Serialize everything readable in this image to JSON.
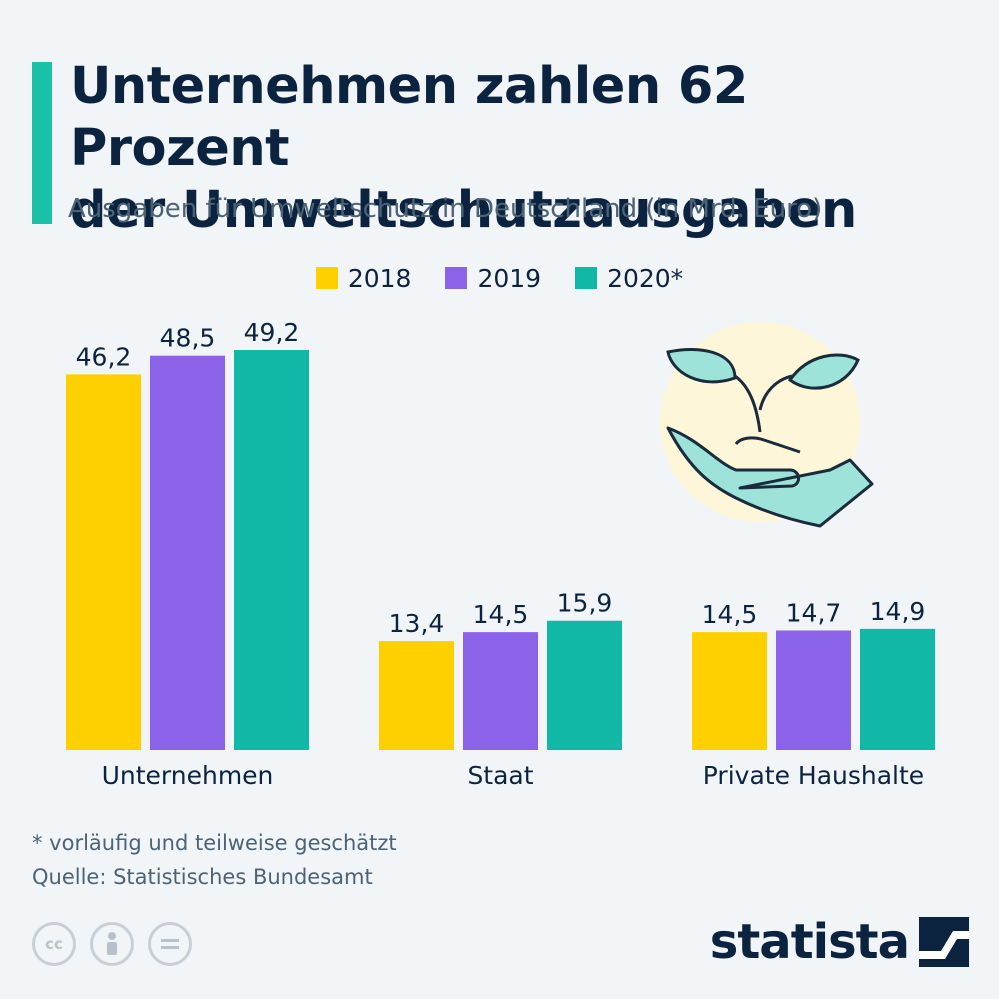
{
  "header": {
    "title_line1": "Unternehmen zahlen 62 Prozent",
    "title_line2": "der Umweltschutzausgaben",
    "subtitle": "Ausgaben für Umweltschutz in Deutschland (in Mrd. Euro)"
  },
  "colors": {
    "accent": "#1cc2a8",
    "2018": "#ffd000",
    "2019": "#8a63e8",
    "2020": "#12b8a6",
    "text": "#0c2340"
  },
  "chart_data": {
    "type": "bar",
    "categories": [
      "Unternehmen",
      "Staat",
      "Private Haushalte"
    ],
    "series": [
      {
        "name": "2018",
        "values": [
          46.2,
          13.4,
          14.5
        ],
        "labels": [
          "46,2",
          "13,4",
          "14,5"
        ]
      },
      {
        "name": "2019",
        "values": [
          48.5,
          14.5,
          14.7
        ],
        "labels": [
          "48,5",
          "14,5",
          "14,7"
        ]
      },
      {
        "name": "2020*",
        "values": [
          49.2,
          15.9,
          14.9
        ],
        "labels": [
          "49,2",
          "15,9",
          "14,9"
        ]
      }
    ],
    "ylim": [
      0,
      49.2
    ],
    "legend": "top-center",
    "grid": false
  },
  "illustration": {
    "icon": "plant-in-hand-icon"
  },
  "footer": {
    "note": "* vorläufig und teilweise geschätzt",
    "source": "Quelle: Statistisches Bundesamt",
    "brand": "statista",
    "license_icons": [
      "cc-icon",
      "attribution-icon",
      "no-derivatives-icon"
    ]
  }
}
